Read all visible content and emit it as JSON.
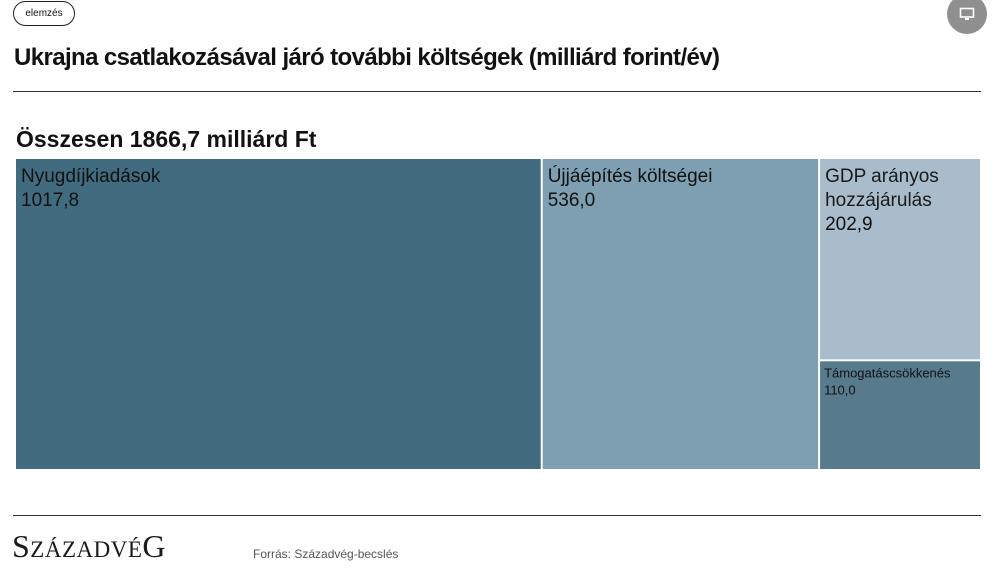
{
  "badge": "elemzés",
  "title": "Ukrajna csatlakozásával járó további költségek (milliárd forint/év)",
  "total_label": "Összesen 1866,7 milliárd Ft",
  "logo": {
    "text": "SZÁZADVÉG",
    "initial": "S",
    "rest": "ZÁZADVÉ",
    "final": "G"
  },
  "source": "Forrás: Századvég-becslés",
  "icons": {
    "corner_button": "presentation-icon"
  },
  "colors": {
    "Nyugdíjkiadások": "#416b7f",
    "Újjáépítés költségei": "#7e9fb1",
    "GDP arányos hozzájárulás": "#a8bccb",
    "Támogatáscsökkenés": "#577b8d",
    "border": "#ffffff"
  },
  "chart_data": {
    "type": "treemap",
    "title": "Ukrajna csatlakozásával járó további költségek (milliárd forint/év)",
    "total": 1866.7,
    "items": [
      {
        "label": "Nyugdíjkiadások",
        "value": 1017.8,
        "value_label": "1017,8"
      },
      {
        "label": "Újjáépítés költségei",
        "value": 536.0,
        "value_label": "536,0"
      },
      {
        "label": "GDP arányos hozzájárulás",
        "value": 202.9,
        "value_label": "202,9"
      },
      {
        "label": "Támogatáscsökkenés",
        "value": 110.0,
        "value_label": "110,0"
      }
    ]
  }
}
